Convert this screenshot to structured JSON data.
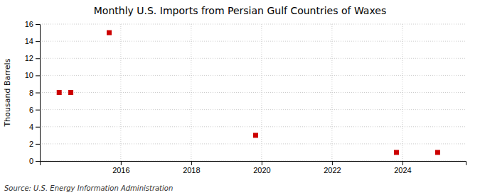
{
  "chart_data": {
    "type": "scatter",
    "title": "Monthly U.S. Imports from Persian Gulf Countries of Waxes",
    "ylabel": "Thousand Barrels",
    "annotations": [
      "Source: U.S. Energy Information Administration"
    ],
    "x": [
      2014.25,
      2014.58,
      2015.67,
      2019.83,
      2023.83,
      2025.0
    ],
    "values": [
      8,
      8,
      15,
      3,
      1,
      1
    ],
    "color": "#cc0000",
    "marker": "square",
    "xlim": [
      2013.7,
      2025.8
    ],
    "ylim": [
      0,
      16
    ],
    "xticks": [
      2016,
      2018,
      2020,
      2022,
      2024
    ],
    "yticks": [
      0,
      2,
      4,
      6,
      8,
      10,
      12,
      14,
      16
    ],
    "grid": true
  }
}
